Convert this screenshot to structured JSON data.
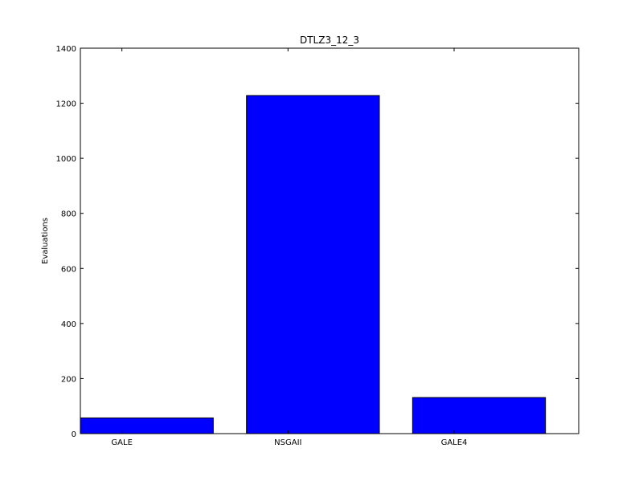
{
  "chart_data": {
    "type": "bar",
    "title": "DTLZ3_12_3",
    "xlabel": "",
    "ylabel": "Evaluations",
    "categories": [
      "GALE",
      "NSGAII",
      "GALE4"
    ],
    "values": [
      57,
      1228,
      131
    ],
    "ylim": [
      0,
      1400
    ],
    "yticks": [
      0,
      200,
      400,
      600,
      800,
      1000,
      1200,
      1400
    ],
    "grid": false,
    "bar_color": "#0000ff",
    "edge_color": "#000000"
  }
}
